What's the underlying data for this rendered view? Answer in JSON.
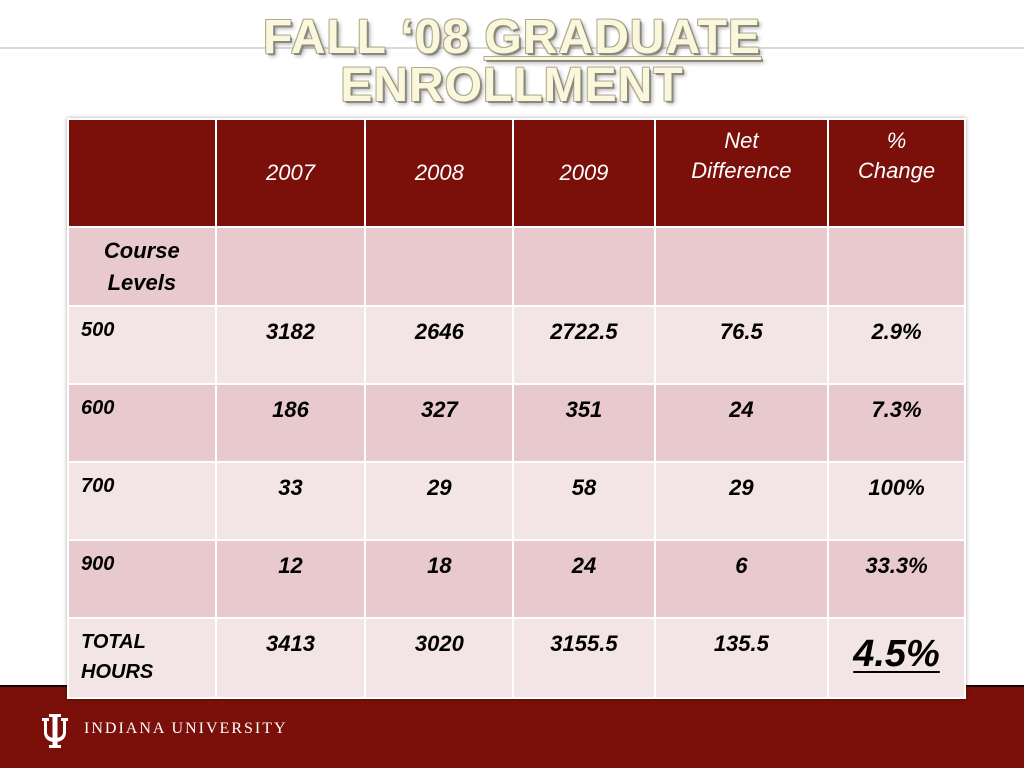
{
  "title": {
    "part1": "FALL ‘08 ",
    "part2": "GRADUATE",
    "part3": "ENROLLMENT"
  },
  "table": {
    "headers": {
      "blank": "",
      "y2007": "2007",
      "y2008": "2008",
      "y2009": "2009",
      "net_line1": "Net",
      "net_line2": "Difference",
      "pct_line1": "%",
      "pct_line2": "Change"
    },
    "subhead": {
      "line1": "Course",
      "line2": "Levels"
    },
    "rows": [
      {
        "label": "500",
        "y2007": "3182",
        "y2008": "2646",
        "y2009": "2722.5",
        "net": "76.5",
        "pct": "2.9%"
      },
      {
        "label": "600",
        "y2007": "186",
        "y2008": "327",
        "y2009": "351",
        "net": "24",
        "pct": "7.3%"
      },
      {
        "label": "700",
        "y2007": "33",
        "y2008": "29",
        "y2009": "58",
        "net": "29",
        "pct": "100%"
      },
      {
        "label": "900",
        "y2007": "12",
        "y2008": "18",
        "y2009": "24",
        "net": "6",
        "pct": "33.3%"
      }
    ],
    "total": {
      "label_line1": "TOTAL",
      "label_line2": "HOURS",
      "y2007": "3413",
      "y2008": "3020",
      "y2009": "3155.5",
      "net": "135.5",
      "pct": "4.5%"
    }
  },
  "footer": {
    "logo_text": "INDIANA UNIVERSITY",
    "icon": "iu-trident-icon"
  },
  "colors": {
    "crimson": "#7a1009",
    "row_dark": "#e8c9cd",
    "row_light": "#f3e4e6",
    "title_fill": "#fbf7dc"
  }
}
